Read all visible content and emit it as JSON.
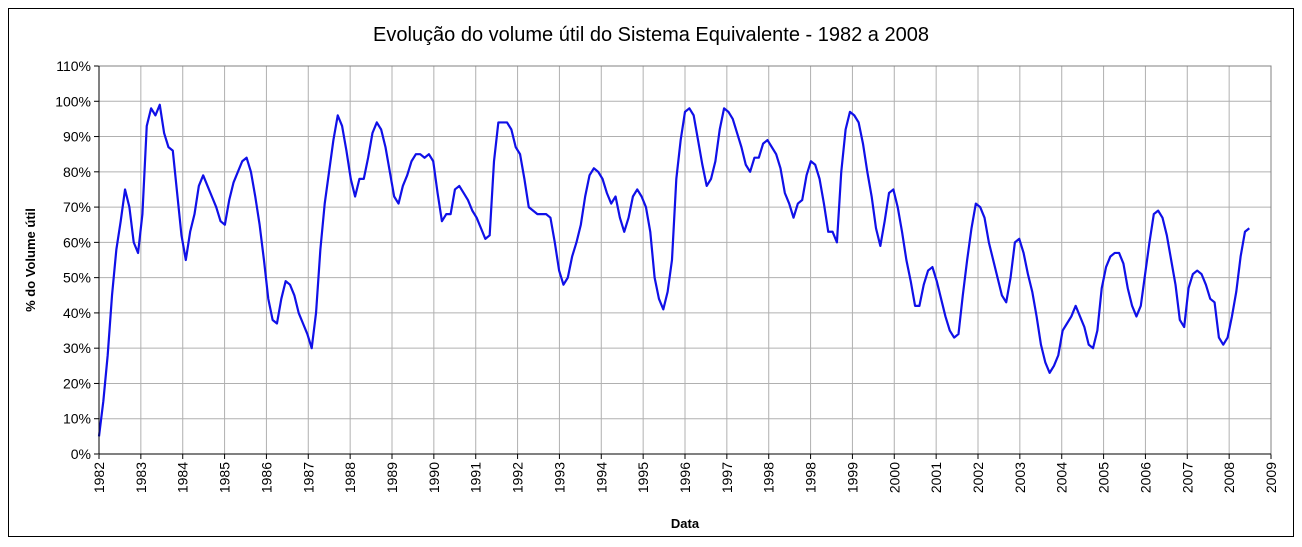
{
  "chart_data": {
    "type": "line",
    "title": "Evolução do volume útil do Sistema Equivalente - 1982 a 2008",
    "x_label": "Data",
    "y_label": "% do Volume útil",
    "xlim": [
      1982,
      2009
    ],
    "ylim": [
      0,
      110
    ],
    "grid": true,
    "xticks": [
      {
        "value": 1982,
        "label": "1982"
      },
      {
        "value": 1982.964,
        "label": "1983"
      },
      {
        "value": 1983.929,
        "label": "1984"
      },
      {
        "value": 1984.893,
        "label": "1985"
      },
      {
        "value": 1985.857,
        "label": "1986"
      },
      {
        "value": 1986.821,
        "label": "1987"
      },
      {
        "value": 1987.786,
        "label": "1988"
      },
      {
        "value": 1988.75,
        "label": "1989"
      },
      {
        "value": 1989.714,
        "label": "1990"
      },
      {
        "value": 1990.679,
        "label": "1991"
      },
      {
        "value": 1991.643,
        "label": "1992"
      },
      {
        "value": 1992.607,
        "label": "1993"
      },
      {
        "value": 1993.571,
        "label": "1994"
      },
      {
        "value": 1994.536,
        "label": "1995"
      },
      {
        "value": 1995.5,
        "label": "1996"
      },
      {
        "value": 1996.464,
        "label": "1997"
      },
      {
        "value": 1997.429,
        "label": "1998"
      },
      {
        "value": 1998.393,
        "label": "1998"
      },
      {
        "value": 1999.357,
        "label": "1999"
      },
      {
        "value": 2000.321,
        "label": "2000"
      },
      {
        "value": 2001.286,
        "label": "2001"
      },
      {
        "value": 2002.25,
        "label": "2002"
      },
      {
        "value": 2003.214,
        "label": "2003"
      },
      {
        "value": 2004.179,
        "label": "2004"
      },
      {
        "value": 2005.143,
        "label": "2005"
      },
      {
        "value": 2006.107,
        "label": "2006"
      },
      {
        "value": 2007.071,
        "label": "2007"
      },
      {
        "value": 2008.036,
        "label": "2008"
      },
      {
        "value": 2009,
        "label": "2009"
      }
    ],
    "yticks": [
      {
        "value": 0,
        "label": "0%"
      },
      {
        "value": 10,
        "label": "10%"
      },
      {
        "value": 20,
        "label": "20%"
      },
      {
        "value": 30,
        "label": "30%"
      },
      {
        "value": 40,
        "label": "40%"
      },
      {
        "value": 50,
        "label": "50%"
      },
      {
        "value": 60,
        "label": "60%"
      },
      {
        "value": 70,
        "label": "70%"
      },
      {
        "value": 80,
        "label": "80%"
      },
      {
        "value": 90,
        "label": "90%"
      },
      {
        "value": 100,
        "label": "100%"
      },
      {
        "value": 110,
        "label": "110%"
      }
    ],
    "x": [
      1982.0,
      1982.1,
      1982.2,
      1982.3,
      1982.4,
      1982.5,
      1982.6,
      1982.7,
      1982.8,
      1982.9,
      1983.0,
      1983.1,
      1983.2,
      1983.3,
      1983.4,
      1983.5,
      1983.6,
      1983.7,
      1983.8,
      1983.9,
      1984.0,
      1984.1,
      1984.2,
      1984.3,
      1984.4,
      1984.5,
      1984.6,
      1984.7,
      1984.8,
      1984.9,
      1985.0,
      1985.1,
      1985.2,
      1985.3,
      1985.4,
      1985.5,
      1985.6,
      1985.7,
      1985.8,
      1985.9,
      1986.0,
      1986.1,
      1986.2,
      1986.3,
      1986.4,
      1986.5,
      1986.6,
      1986.7,
      1986.8,
      1986.9,
      1987.0,
      1987.1,
      1987.2,
      1987.3,
      1987.4,
      1987.5,
      1987.6,
      1987.7,
      1987.8,
      1987.9,
      1988.0,
      1988.1,
      1988.2,
      1988.3,
      1988.4,
      1988.5,
      1988.6,
      1988.7,
      1988.8,
      1988.9,
      1989.0,
      1989.1,
      1989.2,
      1989.3,
      1989.4,
      1989.5,
      1989.6,
      1989.7,
      1989.8,
      1989.9,
      1990.0,
      1990.1,
      1990.2,
      1990.3,
      1990.4,
      1990.5,
      1990.6,
      1990.7,
      1990.8,
      1990.9,
      1991.0,
      1991.1,
      1991.2,
      1991.3,
      1991.4,
      1991.5,
      1991.6,
      1991.7,
      1991.8,
      1991.9,
      1992.0,
      1992.1,
      1992.2,
      1992.3,
      1992.4,
      1992.5,
      1992.6,
      1992.7,
      1992.8,
      1992.9,
      1993.0,
      1993.1,
      1993.2,
      1993.3,
      1993.4,
      1993.5,
      1993.6,
      1993.7,
      1993.8,
      1993.9,
      1994.0,
      1994.1,
      1994.2,
      1994.3,
      1994.4,
      1994.5,
      1994.6,
      1994.7,
      1994.8,
      1994.9,
      1995.0,
      1995.1,
      1995.2,
      1995.3,
      1995.4,
      1995.5,
      1995.6,
      1995.7,
      1995.8,
      1995.9,
      1996.0,
      1996.1,
      1996.2,
      1996.3,
      1996.4,
      1996.5,
      1996.6,
      1996.7,
      1996.8,
      1996.9,
      1997.0,
      1997.1,
      1997.2,
      1997.3,
      1997.4,
      1997.5,
      1997.6,
      1997.7,
      1997.8,
      1997.9,
      1998.0,
      1998.1,
      1998.2,
      1998.3,
      1998.4,
      1998.5,
      1998.6,
      1998.7,
      1998.8,
      1998.9,
      1999.0,
      1999.1,
      1999.2,
      1999.3,
      1999.4,
      1999.5,
      1999.6,
      1999.7,
      1999.8,
      1999.9,
      2000.0,
      2000.1,
      2000.2,
      2000.3,
      2000.4,
      2000.5,
      2000.6,
      2000.7,
      2000.8,
      2000.9,
      2001.0,
      2001.1,
      2001.2,
      2001.3,
      2001.4,
      2001.5,
      2001.6,
      2001.7,
      2001.8,
      2001.9,
      2002.0,
      2002.1,
      2002.2,
      2002.3,
      2002.4,
      2002.5,
      2002.6,
      2002.7,
      2002.8,
      2002.9,
      2003.0,
      2003.1,
      2003.2,
      2003.3,
      2003.4,
      2003.5,
      2003.6,
      2003.7,
      2003.8,
      2003.9,
      2004.0,
      2004.1,
      2004.2,
      2004.3,
      2004.4,
      2004.5,
      2004.6,
      2004.7,
      2004.8,
      2004.9,
      2005.0,
      2005.1,
      2005.2,
      2005.3,
      2005.4,
      2005.5,
      2005.6,
      2005.7,
      2005.8,
      2005.9,
      2006.0,
      2006.1,
      2006.2,
      2006.3,
      2006.4,
      2006.5,
      2006.6,
      2006.7,
      2006.8,
      2006.9,
      2007.0,
      2007.1,
      2007.2,
      2007.3,
      2007.4,
      2007.5,
      2007.6,
      2007.7,
      2007.8,
      2007.9,
      2008.0,
      2008.1,
      2008.2,
      2008.3,
      2008.4,
      2008.5
    ],
    "series": [
      {
        "name": "Volume útil",
        "color": "#1010e8",
        "values": [
          5,
          15,
          28,
          45,
          58,
          66,
          75,
          70,
          60,
          57,
          68,
          93,
          98,
          96,
          99,
          91,
          87,
          86,
          74,
          62,
          55,
          63,
          68,
          76,
          79,
          76,
          73,
          70,
          66,
          65,
          72,
          77,
          80,
          83,
          84,
          80,
          73,
          65,
          55,
          44,
          38,
          37,
          44,
          49,
          48,
          45,
          40,
          37,
          34,
          30,
          40,
          58,
          71,
          80,
          89,
          96,
          93,
          86,
          78,
          73,
          78,
          78,
          84,
          91,
          94,
          92,
          87,
          80,
          73,
          71,
          76,
          79,
          83,
          85,
          85,
          84,
          85,
          83,
          74,
          66,
          68,
          68,
          75,
          76,
          74,
          72,
          69,
          67,
          64,
          61,
          62,
          83,
          94,
          94,
          94,
          92,
          87,
          85,
          78,
          70,
          69,
          68,
          68,
          68,
          67,
          60,
          52,
          48,
          50,
          56,
          60,
          65,
          73,
          79,
          81,
          80,
          78,
          74,
          71,
          73,
          67,
          63,
          67,
          73,
          75,
          73,
          70,
          63,
          50,
          44,
          41,
          46,
          55,
          78,
          89,
          97,
          98,
          96,
          89,
          82,
          76,
          78,
          83,
          92,
          98,
          97,
          95,
          91,
          87,
          82,
          80,
          84,
          84,
          88,
          89,
          87,
          85,
          81,
          74,
          71,
          67,
          71,
          72,
          79,
          83,
          82,
          78,
          71,
          63,
          63,
          60,
          80,
          92,
          97,
          96,
          94,
          88,
          80,
          73,
          64,
          59,
          66,
          74,
          75,
          70,
          63,
          55,
          49,
          42,
          42,
          48,
          52,
          53,
          49,
          44,
          39,
          35,
          33,
          34,
          45,
          55,
          64,
          71,
          70,
          67,
          60,
          55,
          50,
          45,
          43,
          50,
          60,
          61,
          57,
          51,
          46,
          39,
          31,
          26,
          23,
          25,
          28,
          35,
          37,
          39,
          42,
          39,
          36,
          31,
          30,
          35,
          47,
          53,
          56,
          57,
          57,
          54,
          47,
          42,
          39,
          42,
          51,
          60,
          68,
          69,
          67,
          62,
          55,
          48,
          38,
          36,
          47,
          51,
          52,
          51,
          48,
          44,
          43,
          33,
          31,
          33,
          39,
          46,
          56,
          63,
          64
        ]
      }
    ]
  }
}
